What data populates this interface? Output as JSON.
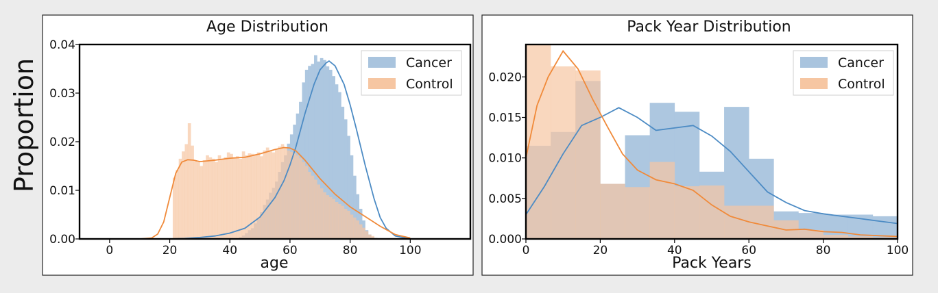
{
  "figure": {
    "ylabel": "Proportion"
  },
  "colors": {
    "cancer": "#4c8bc4",
    "cancer_fill": "#a9c4de",
    "control": "#f08a3a",
    "control_fill": "#f6c6a2",
    "overlap_fill": "#c4ad8e"
  },
  "chart_data": [
    {
      "type": "histogram",
      "title": "Age Distribution",
      "xlabel": "age",
      "ylabel": "",
      "xlim": [
        -10,
        120
      ],
      "ylim": [
        0,
        0.04
      ],
      "xticks": [
        0,
        20,
        40,
        60,
        80,
        100
      ],
      "yticks": [
        "0.00",
        "0.01",
        "0.02",
        "0.03",
        "0.04"
      ],
      "legend_position": "top-right",
      "series": [
        {
          "name": "Cancer",
          "bins": {
            "start": 21,
            "width": 1,
            "values": [
              0,
              0,
              0,
              0,
              0,
              0,
              0,
              0,
              0,
              0,
              0,
              0,
              0,
              0,
              0,
              0,
              0,
              0,
              0,
              0,
              0,
              0,
              0.0004,
              0.0007,
              0.0012,
              0.0018,
              0.0022,
              0.0032,
              0.0042,
              0.0055,
              0.007,
              0.0081,
              0.0095,
              0.0105,
              0.0118,
              0.0138,
              0.0158,
              0.0172,
              0.0196,
              0.0215,
              0.0235,
              0.0258,
              0.0282,
              0.0322,
              0.0348,
              0.0356,
              0.036,
              0.0378,
              0.0365,
              0.0372,
              0.0368,
              0.0355,
              0.0348,
              0.0335,
              0.0318,
              0.0302,
              0.0272,
              0.0246,
              0.0212,
              0.0172,
              0.013,
              0.0092,
              0.0062,
              0.0038,
              0.0018,
              0.0009,
              0.0004,
              0.0002,
              0.0001,
              0
            ]
          },
          "kde": {
            "x": [
              15,
              20,
              25,
              30,
              35,
              40,
              45,
              50,
              55,
              58,
              60,
              62,
              65,
              68,
              70,
              72,
              73,
              75,
              78,
              80,
              82,
              85,
              88,
              90,
              92,
              95,
              100
            ],
            "y": [
              0,
              0,
              0.0001,
              0.0003,
              0.0006,
              0.0012,
              0.0022,
              0.0045,
              0.0085,
              0.012,
              0.0152,
              0.019,
              0.0258,
              0.0318,
              0.0348,
              0.0362,
              0.0366,
              0.0356,
              0.0318,
              0.0276,
              0.0228,
              0.0152,
              0.0082,
              0.0044,
              0.0022,
              0.0006,
              0
            ]
          }
        },
        {
          "name": "Control",
          "bins": {
            "start": 21,
            "width": 1,
            "values": [
              0.0126,
              0.0142,
              0.0165,
              0.018,
              0.0195,
              0.0238,
              0.0192,
              0.016,
              0.0158,
              0.015,
              0.0162,
              0.0172,
              0.0168,
              0.0165,
              0.0158,
              0.0172,
              0.0165,
              0.0168,
              0.0178,
              0.0175,
              0.0168,
              0.017,
              0.0165,
              0.018,
              0.0172,
              0.0176,
              0.0175,
              0.0174,
              0.0178,
              0.017,
              0.0182,
              0.0188,
              0.018,
              0.0178,
              0.0185,
              0.019,
              0.0195,
              0.0188,
              0.0182,
              0.0179,
              0.0176,
              0.0172,
              0.0166,
              0.0158,
              0.015,
              0.0138,
              0.013,
              0.0122,
              0.0112,
              0.0104,
              0.0096,
              0.009,
              0.0086,
              0.0082,
              0.0076,
              0.0072,
              0.0068,
              0.0062,
              0.0058,
              0.005,
              0.0044,
              0.0038,
              0.003,
              0.0023,
              0.0016,
              0.0009,
              0.0006,
              0.0002,
              0.0001,
              0
            ]
          },
          "kde": {
            "x": [
              10,
              14,
              16,
              18,
              20,
              22,
              24,
              26,
              28,
              30,
              35,
              40,
              45,
              50,
              55,
              58,
              60,
              62,
              65,
              70,
              75,
              80,
              85,
              90,
              95,
              100
            ],
            "y": [
              0,
              0.0002,
              0.001,
              0.0035,
              0.0085,
              0.0135,
              0.0158,
              0.0163,
              0.0162,
              0.0159,
              0.0162,
              0.0166,
              0.0168,
              0.0175,
              0.0184,
              0.0188,
              0.0187,
              0.0181,
              0.0162,
              0.0124,
              0.0092,
              0.0066,
              0.0046,
              0.0026,
              0.0009,
              0.0002
            ]
          }
        }
      ]
    },
    {
      "type": "histogram",
      "title": "Pack Year Distribution",
      "xlabel": "Pack Years",
      "ylabel": "",
      "xlim": [
        0,
        100
      ],
      "ylim": [
        0,
        0.024
      ],
      "xticks": [
        0,
        20,
        40,
        60,
        80,
        100
      ],
      "yticks": [
        "0.000",
        "0.005",
        "0.010",
        "0.015",
        "0.020"
      ],
      "legend_position": "top-right",
      "series": [
        {
          "name": "Cancer",
          "bins": {
            "edges": [
              0,
              6.67,
              13.33,
              20,
              26.67,
              33.33,
              40,
              46.67,
              53.33,
              60,
              66.67,
              73.33,
              80,
              86.67,
              93.33,
              100
            ],
            "values": [
              0.0115,
              0.0132,
              0.0195,
              0.0068,
              0.0128,
              0.0168,
              0.0157,
              0.0083,
              0.0163,
              0.0099,
              0.0034,
              0.0032,
              0.003,
              0.003,
              0.0028
            ]
          },
          "kde": {
            "x": [
              0,
              5,
              10,
              15,
              20,
              25,
              30,
              35,
              40,
              45,
              50,
              55,
              60,
              65,
              70,
              75,
              80,
              85,
              90,
              95,
              100
            ],
            "y": [
              0.003,
              0.0065,
              0.0105,
              0.014,
              0.015,
              0.0162,
              0.015,
              0.0134,
              0.0137,
              0.014,
              0.0127,
              0.0108,
              0.0083,
              0.0058,
              0.0045,
              0.0035,
              0.0031,
              0.0028,
              0.0025,
              0.0022,
              0.0019
            ]
          }
        },
        {
          "name": "Control",
          "bins": {
            "edges": [
              0,
              6.67,
              13.33,
              20,
              26.67,
              33.33,
              40,
              46.67,
              53.33,
              60,
              66.67,
              73.33,
              80,
              86.67,
              93.33,
              100
            ],
            "values": [
              0.0245,
              0.0213,
              0.0208,
              0.0068,
              0.0064,
              0.0095,
              0.0065,
              0.0066,
              0.0041,
              0.0041,
              0.0023,
              0.0011,
              0.0005,
              0.0003,
              0.0002
            ]
          },
          "kde": {
            "x": [
              0,
              3,
              6,
              10,
              14,
              18,
              22,
              26,
              30,
              35,
              40,
              45,
              50,
              55,
              60,
              65,
              70,
              75,
              80,
              85,
              90,
              95,
              100
            ],
            "y": [
              0.01,
              0.0165,
              0.02,
              0.0232,
              0.021,
              0.0172,
              0.0138,
              0.0105,
              0.0085,
              0.0073,
              0.0068,
              0.006,
              0.0042,
              0.0028,
              0.0021,
              0.0016,
              0.0011,
              0.0012,
              0.0009,
              0.0008,
              0.0005,
              0.0004,
              0.0003
            ]
          }
        }
      ]
    }
  ]
}
